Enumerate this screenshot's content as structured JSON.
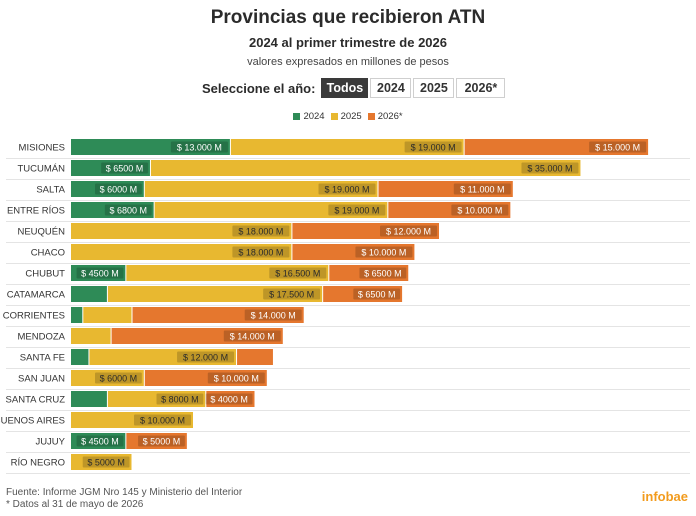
{
  "header": {
    "title": "Provincias que recibieron ATN",
    "subtitle": "2024 al primer trimestre de 2026",
    "note": "valores expresados en millones de pesos"
  },
  "selector": {
    "label": "Seleccione el año:",
    "options": [
      "Todos",
      "2024",
      "2025",
      "2026*"
    ],
    "selected": "Todos"
  },
  "footer": {
    "source": "Fuente: Informe JGM Nro 145 y Ministerio del Interior",
    "footnote": "* Datos al 31 de mayo de 2026",
    "brand": "infobae"
  },
  "chart_data": {
    "type": "bar",
    "orientation": "horizontal",
    "stacked": true,
    "grid": true,
    "legend": "top-center",
    "xlim": [
      0,
      47000
    ],
    "categories": [
      "MISIONES",
      "TUCUMÁN",
      "SALTA",
      "ENTRE RÍOS",
      "NEUQUÉN",
      "CHACO",
      "CHUBUT",
      "CATAMARCA",
      "CORRIENTES",
      "MENDOZA",
      "SANTA FE",
      "SAN JUAN",
      "SANTA CRUZ",
      "BUENOS AIRES",
      "JUJUY",
      "RÍO NEGRO"
    ],
    "series": [
      {
        "name": "2024",
        "color": "#2e8b57",
        "values": [
          13000,
          6500,
          6000,
          6800,
          0,
          0,
          4500,
          3000,
          1000,
          0,
          1500,
          0,
          3000,
          0,
          4500,
          0
        ],
        "labels": [
          "$ 13.000 M",
          "$ 6500 M",
          "$ 6000 M",
          "$ 6800 M",
          "",
          "",
          "$ 4500 M",
          "",
          "",
          "",
          "",
          "",
          "",
          "",
          "$ 4500 M",
          ""
        ]
      },
      {
        "name": "2025",
        "color": "#e8b830",
        "values": [
          19000,
          35000,
          19000,
          19000,
          18000,
          18000,
          16500,
          17500,
          4000,
          3300,
          12000,
          6000,
          8000,
          10000,
          0,
          5000
        ],
        "labels": [
          "$ 19.000 M",
          "$ 35.000 M",
          "$ 19.000 M",
          "$ 19.000 M",
          "$ 18.000 M",
          "$ 18.000 M",
          "$ 16.500 M",
          "$ 17.500 M",
          "",
          "",
          "$ 12.000 M",
          "$ 6000 M",
          "$ 8000 M",
          "$ 10.000 M",
          "",
          "$ 5000 M"
        ]
      },
      {
        "name": "2026*",
        "color": "#e5772e",
        "values": [
          15000,
          0,
          11000,
          10000,
          12000,
          10000,
          6500,
          6500,
          14000,
          14000,
          3000,
          10000,
          4000,
          0,
          5000,
          0
        ],
        "labels": [
          "$ 15.000 M",
          "",
          "$ 11.000 M",
          "$ 10.000 M",
          "$ 12.000 M",
          "$ 10.000 M",
          "$ 6500 M",
          "$ 6500 M",
          "$ 14.000 M",
          "$ 14.000 M",
          "",
          "$ 10.000 M",
          "$ 4000 M",
          "",
          "$ 5000 M",
          ""
        ]
      }
    ]
  }
}
